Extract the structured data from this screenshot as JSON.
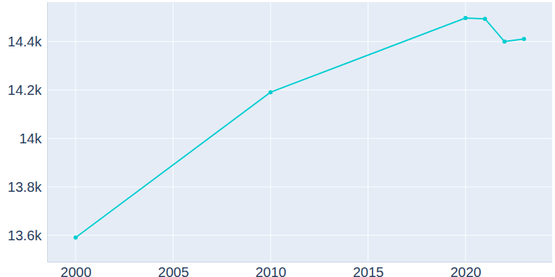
{
  "chart_data": {
    "type": "line",
    "x": [
      2000,
      2010,
      2020,
      2021,
      2022,
      2023
    ],
    "series": [
      {
        "color": "#00ced1",
        "marker": "circle",
        "values": [
          13591,
          14191,
          14497,
          14494,
          14400,
          14411
        ]
      }
    ],
    "xlim": [
      1998.54,
      2024.45
    ],
    "xticks": [
      2000,
      2005,
      2010,
      2015,
      2020
    ],
    "ylim": [
      13491,
      14563
    ],
    "yticks": [
      {
        "value": 13600,
        "label": "13.6k"
      },
      {
        "value": 13800,
        "label": "13.8k"
      },
      {
        "value": 14000,
        "label": "14k"
      },
      {
        "value": 14200,
        "label": "14.2k"
      },
      {
        "value": 14400,
        "label": "14.4k"
      }
    ],
    "grid": true
  }
}
